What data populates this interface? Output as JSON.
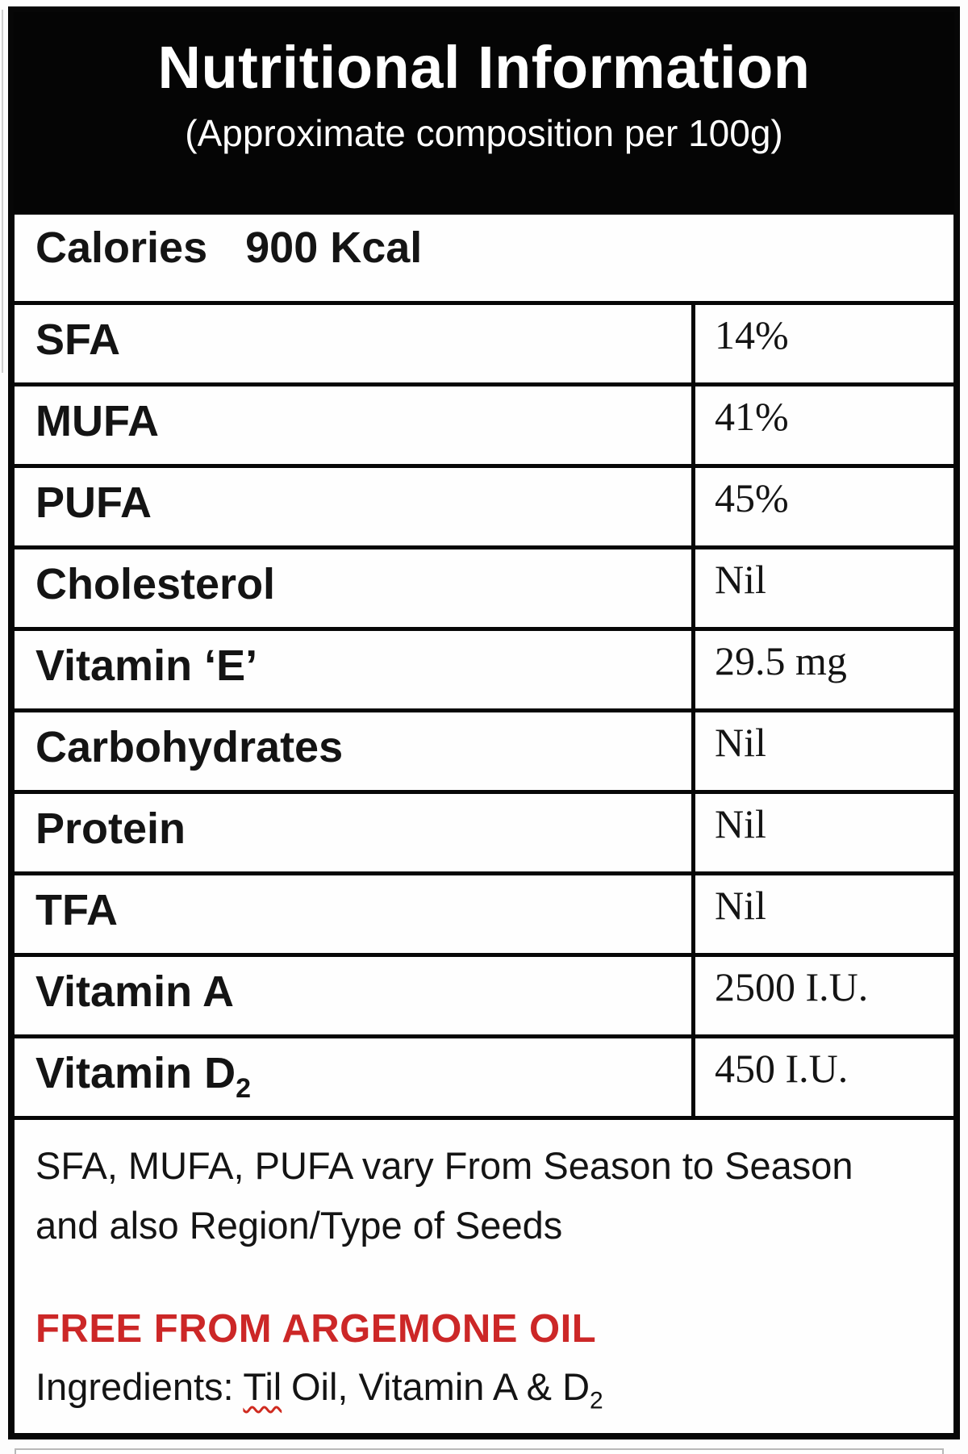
{
  "header": {
    "title": "Nutritional Information",
    "subtitle": "(Approximate composition per 100g)"
  },
  "calories_row": {
    "label": "Calories",
    "value": "900 Kcal"
  },
  "table": {
    "rows": [
      {
        "label": "SFA",
        "value": "14%"
      },
      {
        "label": "MUFA",
        "value": "41%"
      },
      {
        "label": "PUFA",
        "value": "45%"
      },
      {
        "label": "Cholesterol",
        "value": "Nil"
      },
      {
        "label": "Vitamin ‘E’",
        "value": "29.5 mg"
      },
      {
        "label": "Carbohydrates",
        "value": "Nil"
      },
      {
        "label": "Protein",
        "value": "Nil"
      },
      {
        "label": "TFA",
        "value": "Nil"
      },
      {
        "label": "Vitamin A",
        "value": "2500 I.U."
      },
      {
        "label": "Vitamin D",
        "label_sub": "2",
        "value": "450 I.U."
      }
    ]
  },
  "notes": {
    "season_note": "SFA, MUFA, PUFA vary From Season to Season and also Region/Type of Seeds",
    "free_from": "FREE FROM ARGEMONE OIL",
    "ingredients_label": "Ingredients:",
    "ingredients_til": "Til",
    "ingredients_rest": "Oil, Vitamin A & D",
    "ingredients_sub": "2"
  },
  "colors": {
    "accent_red": "#cc2727",
    "header_bg": "#050505",
    "border": "#070707"
  }
}
